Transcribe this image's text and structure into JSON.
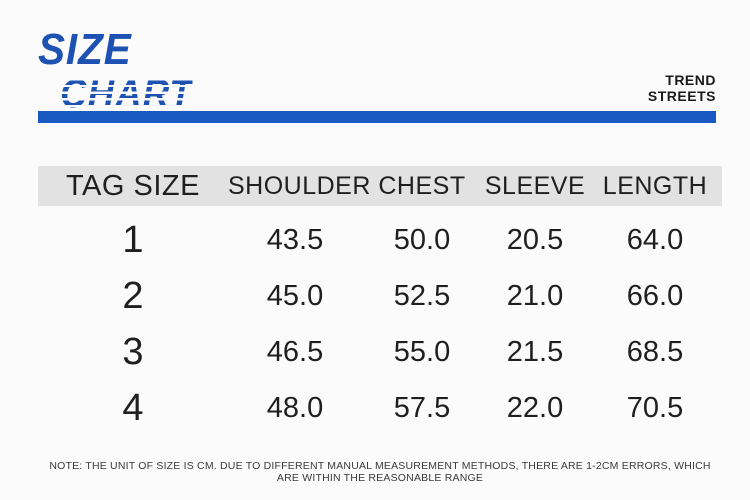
{
  "logo": {
    "line1": "SIZE",
    "line2": "CHART"
  },
  "brand": {
    "line1": "TREND",
    "line2": "STREETS"
  },
  "table": {
    "headers": [
      "TAG SIZE",
      "SHOULDER",
      "CHEST",
      "SLEEVE",
      "LENGTH"
    ],
    "rows": [
      [
        "1",
        "43.5",
        "50.0",
        "20.5",
        "64.0"
      ],
      [
        "2",
        "45.0",
        "52.5",
        "21.0",
        "66.0"
      ],
      [
        "3",
        "46.5",
        "55.0",
        "21.5",
        "68.5"
      ],
      [
        "4",
        "48.0",
        "57.5",
        "22.0",
        "70.5"
      ]
    ]
  },
  "note": "NOTE: THE UNIT OF SIZE IS CM. DUE TO DIFFERENT MANUAL MEASUREMENT METHODS, THERE ARE 1-2CM ERRORS, WHICH ARE WITHIN THE REASONABLE RANGE",
  "colors": {
    "accent_blue": "#1a58c2",
    "logo_blue": "#1d52b2",
    "header_row_bg": "#e2e2e2",
    "text": "#1f1f1f"
  }
}
